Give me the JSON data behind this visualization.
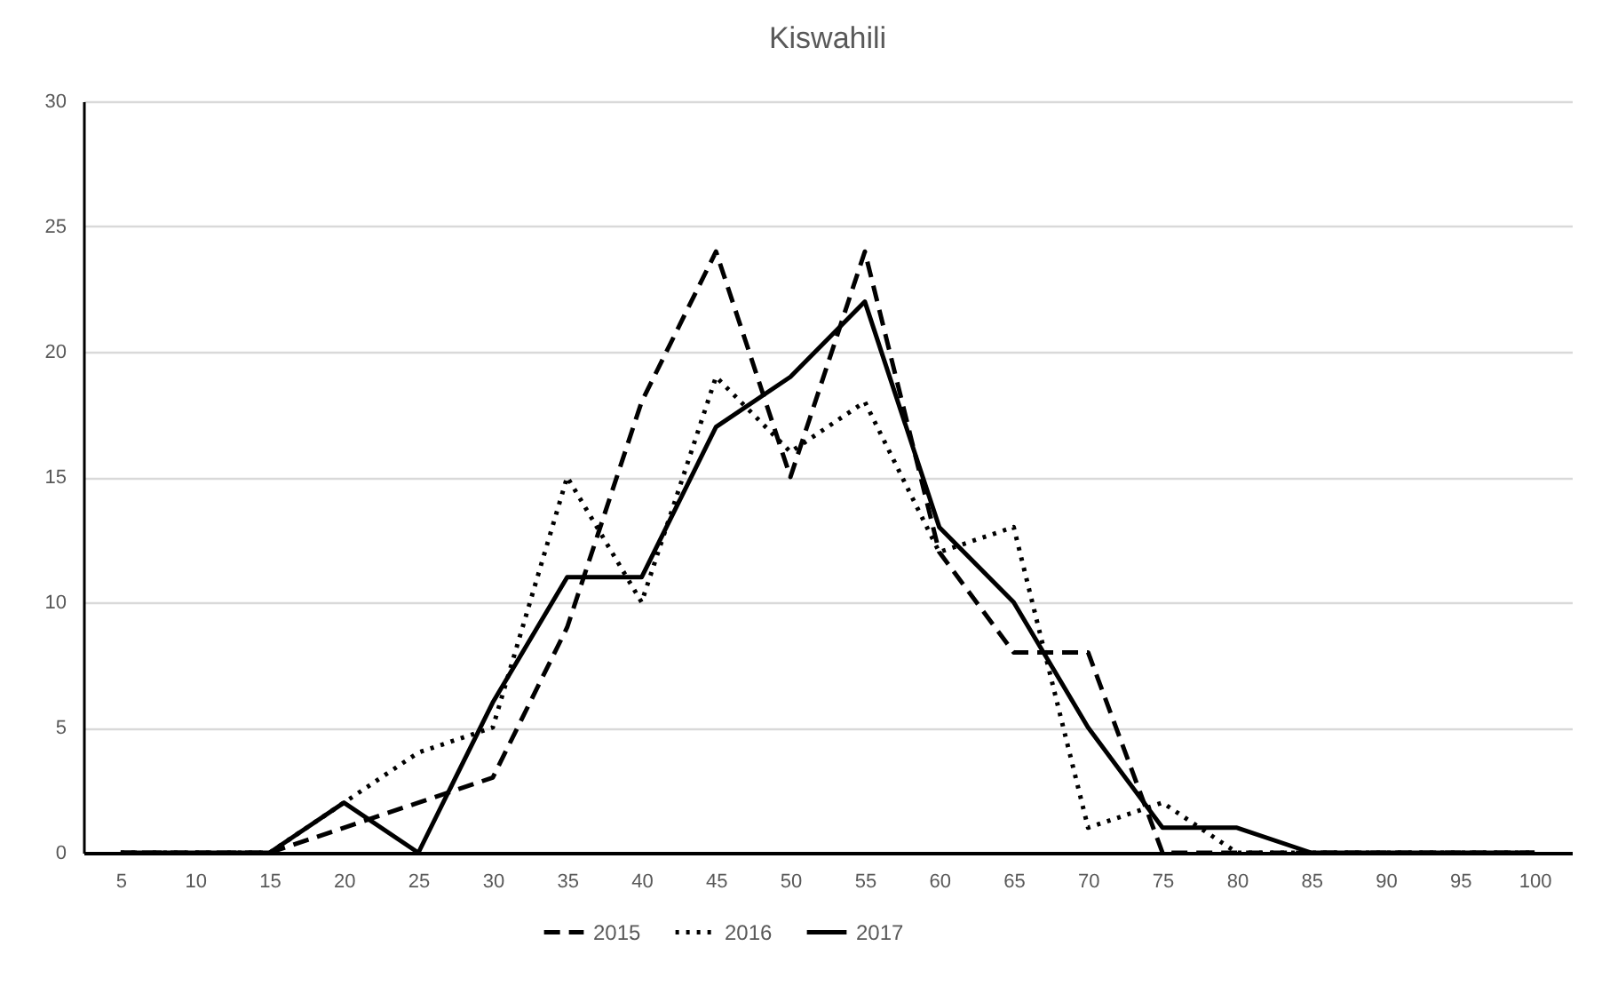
{
  "chart_data": {
    "type": "line",
    "title": "Kiswahili",
    "categories": [
      "5",
      "10",
      "15",
      "20",
      "25",
      "30",
      "35",
      "40",
      "45",
      "50",
      "55",
      "60",
      "65",
      "70",
      "75",
      "80",
      "85",
      "90",
      "95",
      "100"
    ],
    "series": [
      {
        "name": "2015",
        "color": "#000000",
        "line_style": "dashed",
        "values": [
          0,
          0,
          0,
          1,
          2,
          3,
          9,
          18,
          24,
          15,
          24,
          12,
          8,
          8,
          0,
          0,
          0,
          0,
          0,
          0
        ]
      },
      {
        "name": "2016",
        "color": "#000000",
        "line_style": "dotted",
        "values": [
          0,
          0,
          0,
          2,
          4,
          5,
          15,
          10,
          19,
          16,
          18,
          12,
          13,
          1,
          2,
          0,
          0,
          0,
          0,
          0
        ]
      },
      {
        "name": "2017",
        "color": "#000000",
        "line_style": "solid",
        "values": [
          0,
          0,
          0,
          2,
          0,
          6,
          11,
          11,
          17,
          19,
          22,
          13,
          10,
          5,
          1,
          1,
          0,
          0,
          0,
          0
        ]
      }
    ],
    "ylim": [
      0,
      30
    ],
    "yticks": [
      0,
      5,
      10,
      15,
      20,
      25,
      30
    ],
    "grid": "y",
    "legend": "bottom"
  }
}
